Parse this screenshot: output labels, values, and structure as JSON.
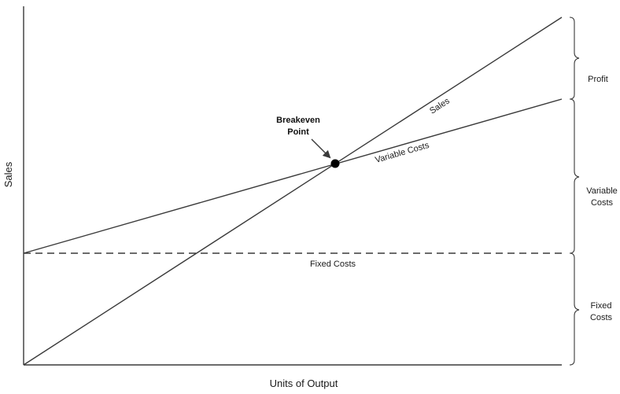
{
  "axes": {
    "y_label": "Sales",
    "x_label": "Units of Output"
  },
  "lines": {
    "sales": "Sales",
    "variable_costs": "Variable Costs",
    "fixed_costs": "Fixed Costs"
  },
  "breakeven": {
    "line1": "Breakeven",
    "line2": "Point"
  },
  "braces": {
    "profit": "Profit",
    "variable_costs_line1": "Variable",
    "variable_costs_line2": "Costs",
    "fixed_costs_line1": "Fixed",
    "fixed_costs_line2": "Costs"
  }
}
